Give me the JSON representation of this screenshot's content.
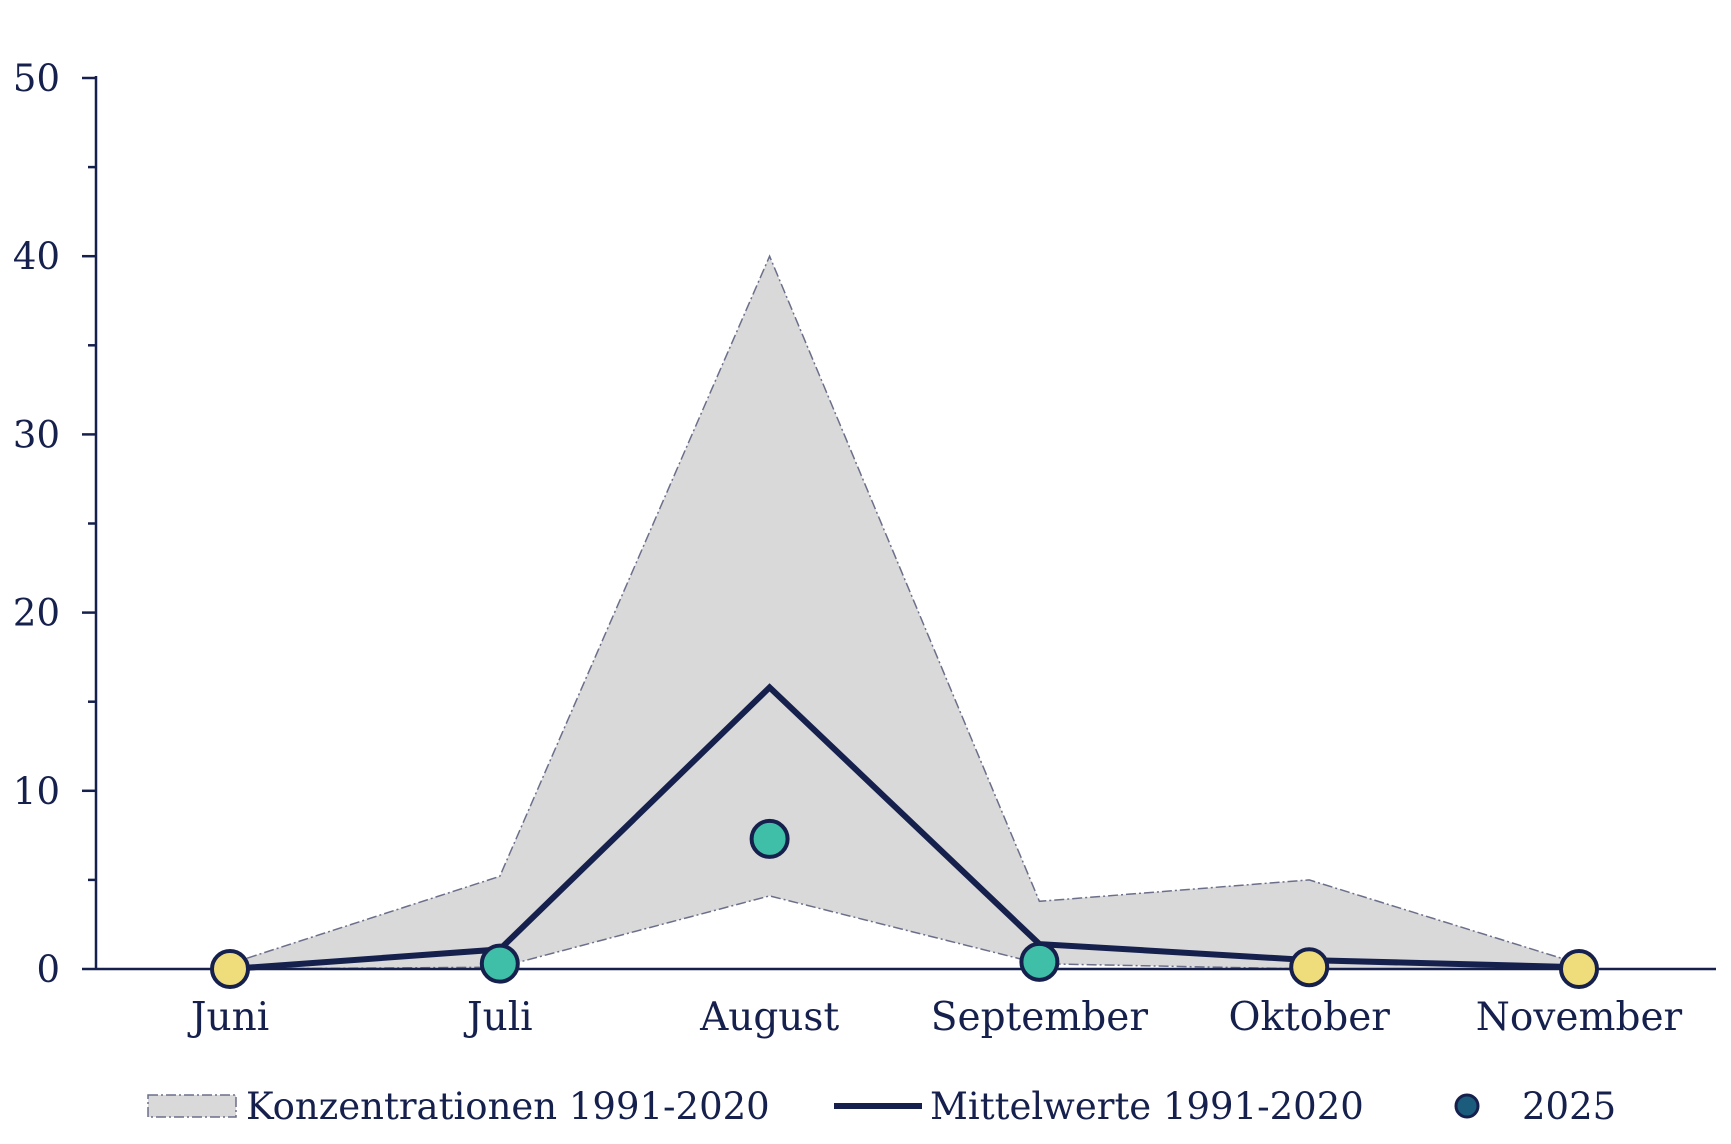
{
  "chart_data": {
    "type": "line",
    "categories": [
      "Juni",
      "Juli",
      "August",
      "September",
      "Oktober",
      "November"
    ],
    "ylim": [
      0,
      50
    ],
    "yticks": [
      0,
      10,
      20,
      30,
      40,
      50
    ],
    "yminor_step": 5,
    "grid": false,
    "legend_position": "bottom",
    "band": {
      "name": "Konzentrationen 1991-2020",
      "upper": [
        0.3,
        5.2,
        40.0,
        3.8,
        5.0,
        0.3
      ],
      "lower": [
        0.0,
        0.1,
        4.1,
        0.3,
        0.0,
        0.0
      ]
    },
    "mean_series": {
      "name": "Mittelwerte 1991-2020",
      "values": [
        0.0,
        1.1,
        15.8,
        1.4,
        0.5,
        0.1
      ]
    },
    "points_series": {
      "name": "2025",
      "values": [
        0.0,
        0.3,
        7.3,
        0.4,
        0.1,
        0.0
      ]
    },
    "colors": {
      "axis": "#16204d",
      "band_fill": "#d9d9d9",
      "band_edge": "#6b6f8a",
      "mean_line": "#16204d",
      "point_normal": "#efdd7c",
      "point_high": "#3fbfa8",
      "point_stroke": "#16204d",
      "legend_dot": "#1b5c7c"
    },
    "point_colors": [
      "#efdd7c",
      "#3fbfa8",
      "#3fbfa8",
      "#3fbfa8",
      "#efdd7c",
      "#efdd7c"
    ]
  }
}
